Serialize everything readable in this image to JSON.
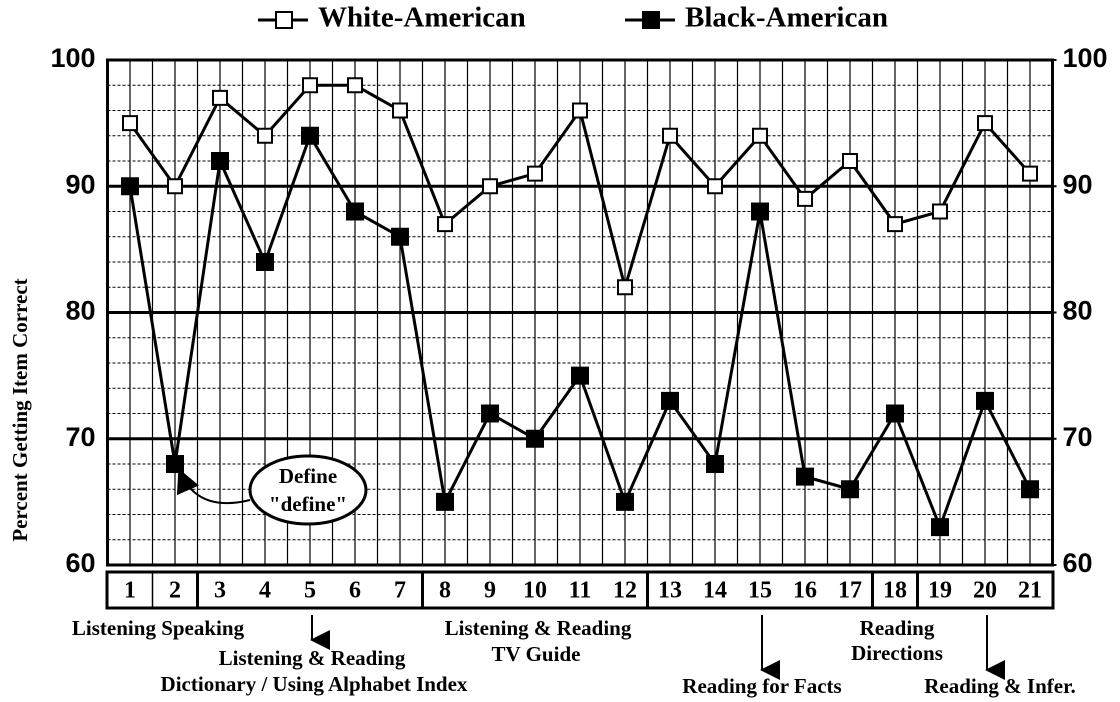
{
  "chart_data": {
    "type": "line",
    "y_label": "Percent Getting Item Correct",
    "categories": [
      "1",
      "2",
      "3",
      "4",
      "5",
      "6",
      "7",
      "8",
      "9",
      "10",
      "11",
      "12",
      "13",
      "14",
      "15",
      "16",
      "17",
      "18",
      "19",
      "20",
      "21"
    ],
    "series": [
      {
        "name": "White-American",
        "color": "#000000",
        "marker": "open-square",
        "values": [
          95,
          90,
          97,
          94,
          98,
          98,
          96,
          87,
          90,
          91,
          96,
          82,
          94,
          90,
          94,
          89,
          92,
          87,
          88,
          95,
          91
        ]
      },
      {
        "name": "Black-American",
        "color": "#000000",
        "marker": "filled-square",
        "values": [
          90,
          68,
          92,
          84,
          94,
          88,
          86,
          65,
          72,
          70,
          75,
          65,
          73,
          68,
          88,
          67,
          66,
          72,
          63,
          73,
          66
        ]
      }
    ],
    "ylim": [
      60,
      100
    ],
    "yticks": [
      60,
      70,
      80,
      90,
      100
    ],
    "y2lim": [
      60,
      100
    ],
    "y2ticks": [
      60,
      70,
      80,
      90,
      100
    ],
    "grid": true,
    "annotations": [
      "Define",
      "\"define\"",
      "Listening Speaking",
      "Listening & Reading",
      "Dictionary / Using Alphabet Index",
      "Listening & Reading",
      "TV Guide",
      "Reading",
      "Directions",
      "Reading for Facts",
      "Reading & Infer."
    ]
  }
}
